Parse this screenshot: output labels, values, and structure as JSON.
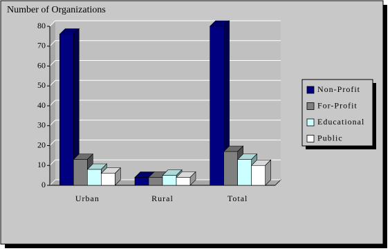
{
  "chart_data": {
    "type": "bar3d",
    "title": "Number of Organizations",
    "categories": [
      "Urban",
      "Rural",
      "Total"
    ],
    "series": [
      {
        "name": "Non-Profit",
        "color": "#000080",
        "values": [
          76,
          4,
          80
        ]
      },
      {
        "name": "For-Profit",
        "color": "#808080",
        "values": [
          13,
          4,
          17
        ]
      },
      {
        "name": "Educational",
        "color": "#ccffff",
        "values": [
          8,
          5,
          13
        ]
      },
      {
        "name": "Public",
        "color": "#ffffff",
        "values": [
          6,
          4,
          10
        ]
      }
    ],
    "ylim": [
      0,
      80
    ],
    "yticks": [
      0,
      10,
      20,
      30,
      40,
      50,
      60,
      70,
      80
    ],
    "grid": true,
    "legend": "right"
  }
}
